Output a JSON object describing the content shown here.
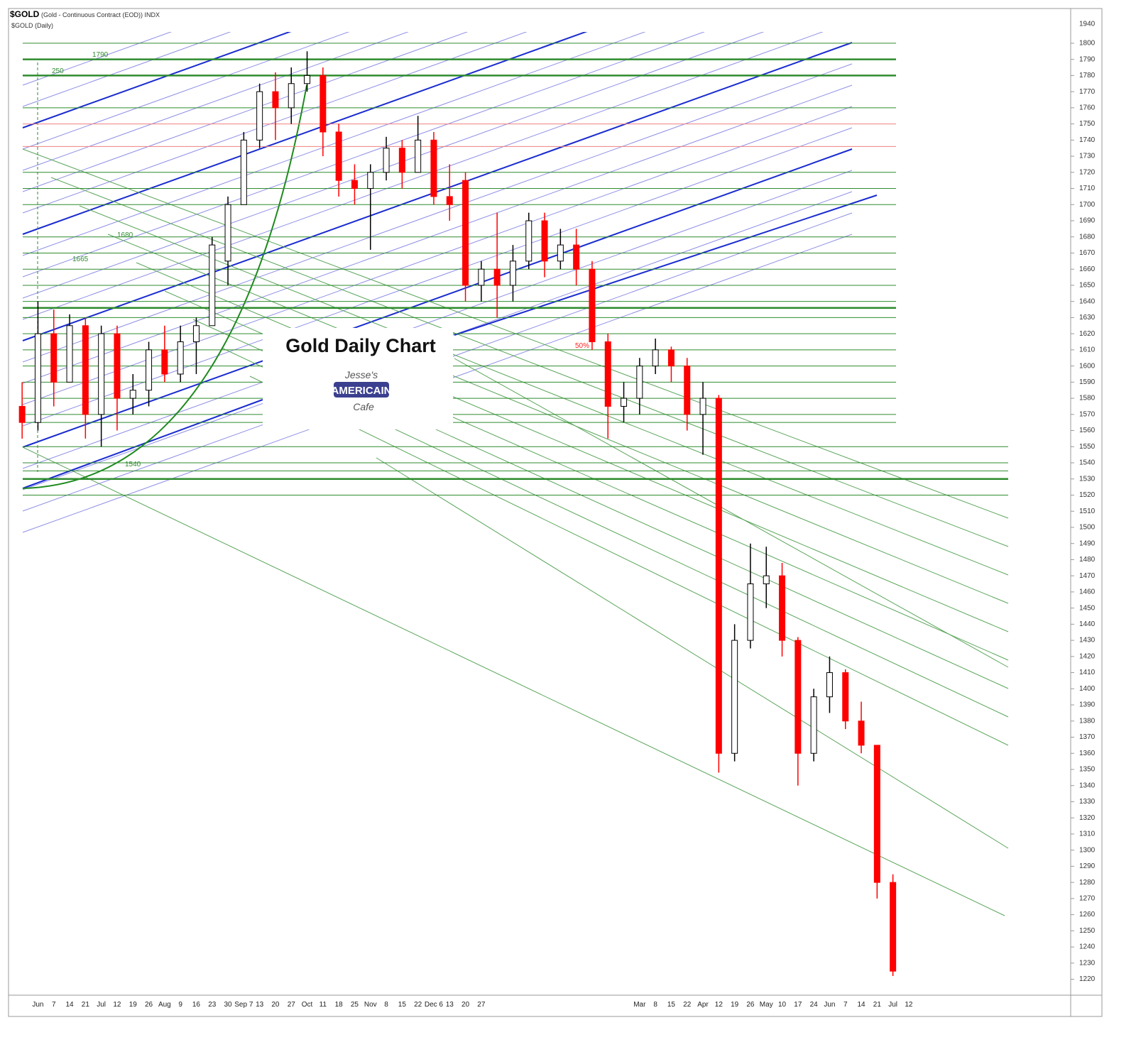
{
  "chart_data": {
    "type": "candlestick",
    "symbol": "$GOLD",
    "description": "(Gold - Continuous Contract (EOD)) INDX",
    "subtitle": "$GOLD (Daily)",
    "title": "Gold Daily Chart",
    "logo": {
      "line1": "Jesse's",
      "line2": "AMERICAIN",
      "line3": "Cafe"
    },
    "axis_top_label": "1940",
    "annotations": [
      "1790",
      "250",
      "1680",
      "1665",
      "1540",
      "50%"
    ],
    "categories": [
      null,
      "Jun",
      "7",
      "14",
      "21",
      "Jul",
      "12",
      "19",
      "26",
      "Aug",
      "9",
      "16",
      "23",
      "30",
      "Sep 7",
      "13",
      "20",
      "27",
      "Oct",
      "11",
      "18",
      "25",
      "Nov",
      "8",
      "15",
      "22",
      "Dec 6",
      "13",
      "20",
      "27",
      null,
      null,
      null,
      null,
      null,
      null,
      null,
      null,
      null,
      "Mar",
      "8",
      "15",
      "22",
      "Apr",
      "12",
      "19",
      "26",
      "May",
      "10",
      "17",
      "24",
      "Jun",
      "7",
      "14",
      "21",
      "Jul",
      "12",
      null,
      null,
      null,
      null,
      null,
      null,
      null,
      null,
      null
    ],
    "open": [
      1575,
      1565,
      1620,
      1590,
      1625,
      1570,
      1620,
      1580,
      1585,
      1610,
      1595,
      1615,
      1625,
      1665,
      1700,
      1740,
      1770,
      1760,
      1775,
      1780,
      1745,
      1715,
      1710,
      1720,
      1735,
      1720,
      1740,
      1705,
      1715,
      1650,
      1660,
      1650,
      1665,
      1690,
      1665,
      1675,
      1660,
      1615,
      1575,
      1580,
      1600,
      1610,
      1600,
      1570,
      1580,
      1360,
      1430,
      1465,
      1470,
      1430,
      1360,
      1395,
      1410,
      1380,
      1365,
      1280,
      null,
      null,
      null,
      null,
      null,
      null,
      null,
      null,
      null,
      null
    ],
    "high": [
      1590,
      1640,
      1635,
      1632,
      1630,
      1625,
      1625,
      1595,
      1615,
      1625,
      1625,
      1630,
      1680,
      1705,
      1745,
      1775,
      1782,
      1785,
      1795,
      1785,
      1750,
      1725,
      1725,
      1742,
      1740,
      1755,
      1745,
      1725,
      1720,
      1665,
      1695,
      1675,
      1695,
      1695,
      1685,
      1685,
      1665,
      1620,
      1590,
      1605,
      1617,
      1612,
      1605,
      1590,
      1582,
      1440,
      1490,
      1488,
      1478,
      1432,
      1400,
      1420,
      1412,
      1392,
      1365,
      1285,
      null,
      null,
      null,
      null,
      null,
      null,
      null,
      null,
      null,
      null
    ],
    "low": [
      1555,
      1560,
      1575,
      1590,
      1555,
      1550,
      1560,
      1570,
      1575,
      1590,
      1590,
      1595,
      1625,
      1650,
      1700,
      1735,
      1740,
      1750,
      1770,
      1730,
      1705,
      1700,
      1672,
      1715,
      1710,
      1720,
      1700,
      1690,
      1640,
      1640,
      1630,
      1640,
      1660,
      1655,
      1660,
      1650,
      1610,
      1555,
      1565,
      1570,
      1595,
      1590,
      1560,
      1545,
      1348,
      1355,
      1425,
      1450,
      1420,
      1340,
      1355,
      1385,
      1375,
      1360,
      1270,
      1222,
      null,
      null,
      null,
      null,
      null,
      null,
      null,
      null,
      null,
      null
    ],
    "close": [
      1565,
      1620,
      1590,
      1625,
      1570,
      1620,
      1580,
      1585,
      1610,
      1595,
      1615,
      1625,
      1675,
      1700,
      1740,
      1770,
      1760,
      1775,
      1780,
      1745,
      1715,
      1710,
      1720,
      1735,
      1720,
      1740,
      1705,
      1700,
      1650,
      1660,
      1650,
      1665,
      1690,
      1665,
      1675,
      1660,
      1615,
      1575,
      1580,
      1600,
      1610,
      1600,
      1570,
      1580,
      1360,
      1430,
      1465,
      1470,
      1430,
      1360,
      1395,
      1410,
      1380,
      1365,
      1280,
      1225,
      null,
      null,
      null,
      null,
      null,
      null,
      null,
      null,
      null,
      null
    ],
    "up_color": "#ffffff",
    "down_color": "#ff0000",
    "levels": [
      1800,
      1790,
      1780,
      1760,
      1720,
      1710,
      1700,
      1680,
      1670,
      1660,
      1650,
      1640,
      1636,
      1630,
      1620,
      1610,
      1600,
      1590,
      1580,
      1570,
      1565,
      1550,
      1540,
      1535,
      1530,
      1520
    ],
    "red_levels": [
      1750,
      1736
    ],
    "level_color": "#2e8b2e",
    "ylim": [
      1211,
      1807
    ],
    "yticks": [
      1220,
      1230,
      1240,
      1250,
      1260,
      1270,
      1280,
      1290,
      1300,
      1310,
      1320,
      1330,
      1340,
      1350,
      1360,
      1370,
      1380,
      1390,
      1400,
      1410,
      1420,
      1430,
      1440,
      1450,
      1460,
      1470,
      1480,
      1490,
      1500,
      1510,
      1520,
      1530,
      1540,
      1550,
      1560,
      1570,
      1580,
      1590,
      1600,
      1610,
      1620,
      1630,
      1640,
      1650,
      1660,
      1670,
      1680,
      1690,
      1700,
      1710,
      1720,
      1730,
      1740,
      1750,
      1760,
      1770,
      1780,
      1790,
      1800
    ]
  }
}
